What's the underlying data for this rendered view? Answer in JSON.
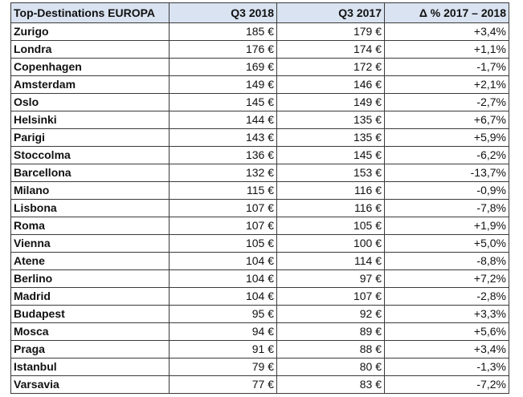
{
  "table": {
    "headers": [
      "Top-Destinations EUROPA",
      "Q3 2018",
      "Q3 2017",
      "Δ % 2017 – 2018"
    ],
    "rows": [
      [
        "Zurigo",
        "185 €",
        "179 €",
        "+3,4%"
      ],
      [
        "Londra",
        "176 €",
        "174 €",
        "+1,1%"
      ],
      [
        "Copenhagen",
        "169 €",
        "172 €",
        "-1,7%"
      ],
      [
        "Amsterdam",
        "149 €",
        "146 €",
        "+2,1%"
      ],
      [
        "Oslo",
        "145 €",
        "149 €",
        "-2,7%"
      ],
      [
        "Helsinki",
        "144 €",
        "135 €",
        "+6,7%"
      ],
      [
        "Parigi",
        "143 €",
        "135 €",
        "+5,9%"
      ],
      [
        "Stoccolma",
        "136 €",
        "145 €",
        "-6,2%"
      ],
      [
        "Barcellona",
        "132 €",
        "153 €",
        "-13,7%"
      ],
      [
        "Milano",
        "115 €",
        "116 €",
        "-0,9%"
      ],
      [
        "Lisbona",
        "107 €",
        "116 €",
        "-7,8%"
      ],
      [
        "Roma",
        "107 €",
        "105 €",
        "+1,9%"
      ],
      [
        "Vienna",
        "105 €",
        "100 €",
        "+5,0%"
      ],
      [
        "Atene",
        "104 €",
        "114 €",
        "-8,8%"
      ],
      [
        "Berlino",
        "104 €",
        "97 €",
        "+7,2%"
      ],
      [
        "Madrid",
        "104 €",
        "107 €",
        "-2,8%"
      ],
      [
        "Budapest",
        "95 €",
        "92 €",
        "+3,3%"
      ],
      [
        "Mosca",
        "94 €",
        "89 €",
        "+5,6%"
      ],
      [
        "Praga",
        "91 €",
        "88 €",
        "+3,4%"
      ],
      [
        "Istanbul",
        "79 €",
        "80 €",
        "-1,3%"
      ],
      [
        "Varsavia",
        "77 €",
        "83 €",
        "-7,2%"
      ]
    ]
  },
  "colors": {
    "header_background": "#d9e3f1",
    "border": "#3a3a3a",
    "text": "#111111"
  }
}
